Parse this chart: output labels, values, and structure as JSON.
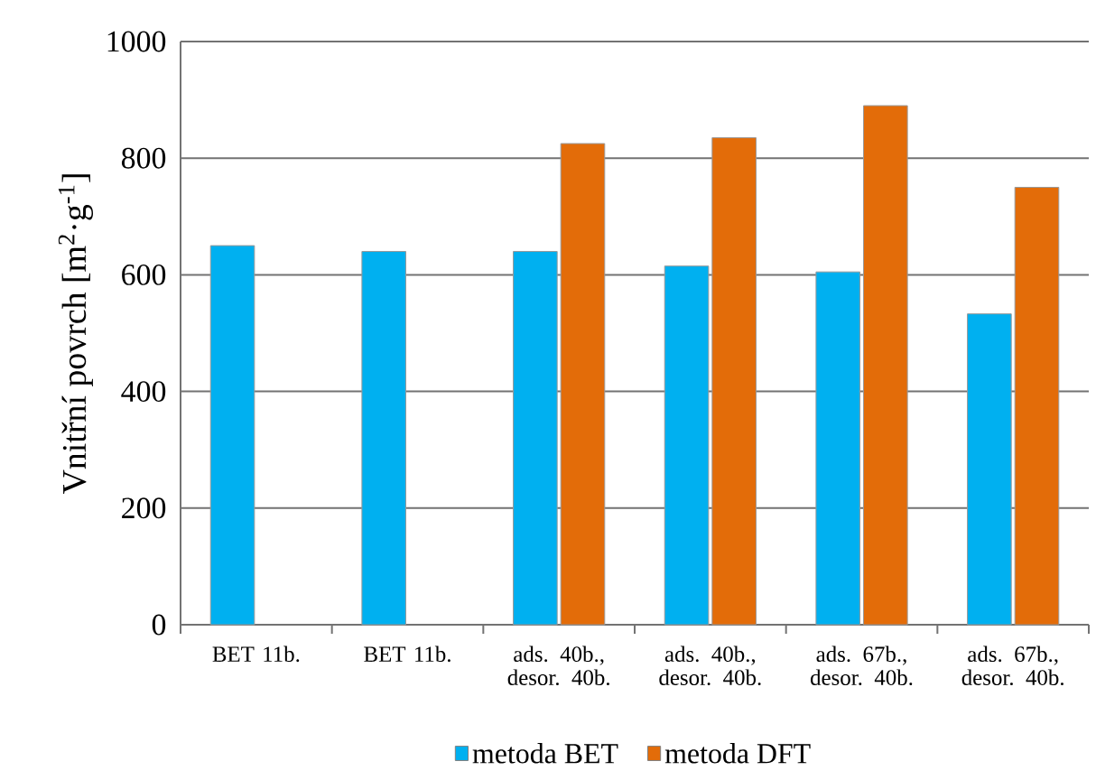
{
  "chart_data": {
    "type": "bar",
    "ylabel": "Vnitřní povrch [m$^{2}$·g$^{-1}$]",
    "categories": [
      "BET 11b.",
      "BET 11b.",
      "ads. 40b., desor. 40b.",
      "ads. 40b., desor. 40b.",
      "ads. 67b., desor. 40b.",
      "ads. 67b., desor. 40b."
    ],
    "series": [
      {
        "name": "metoda BET",
        "color": "#00b0f0",
        "values": [
          650,
          640,
          640,
          615,
          605,
          533
        ]
      },
      {
        "name": "metoda DFT",
        "color": "#e36c09",
        "values": [
          null,
          null,
          825,
          835,
          890,
          750
        ]
      }
    ],
    "ylim": [
      0,
      1000
    ],
    "yticks": [
      0,
      200,
      400,
      600,
      800,
      1000
    ],
    "grid": "y",
    "legend": "bottom"
  }
}
